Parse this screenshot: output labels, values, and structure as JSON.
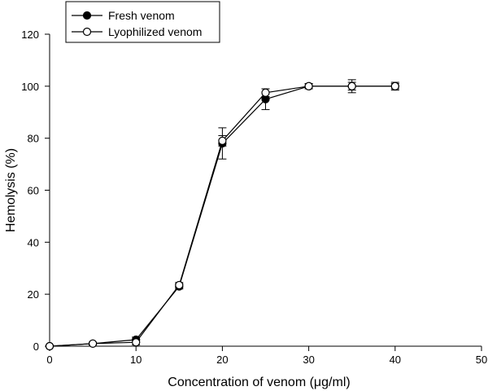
{
  "chart_data": {
    "type": "line",
    "title": "",
    "xlabel": "Concentration of venom (μg/ml)",
    "ylabel": "Hemolysis (%)",
    "xlim": [
      0,
      50
    ],
    "ylim": [
      0,
      120
    ],
    "xticks": [
      0,
      10,
      20,
      30,
      40,
      50
    ],
    "yticks": [
      0,
      20,
      40,
      60,
      80,
      100,
      120
    ],
    "grid": false,
    "legend_position": "top-left",
    "series": [
      {
        "name": "Fresh venom",
        "marker": "filled-circle",
        "color": "#000000",
        "x": [
          0,
          5,
          10,
          15,
          20,
          25,
          30,
          35,
          40
        ],
        "y": [
          0,
          1,
          2.5,
          23,
          78,
          95,
          100,
          100,
          100
        ],
        "error": [
          0,
          0.5,
          1,
          1,
          6,
          4,
          1,
          2.5,
          1.5
        ]
      },
      {
        "name": "Lyophilized venom",
        "marker": "open-circle",
        "color": "#000000",
        "x": [
          0,
          5,
          10,
          15,
          20,
          25,
          30,
          35,
          40
        ],
        "y": [
          0,
          1,
          1.5,
          23.5,
          79,
          97.5,
          100,
          100,
          100
        ],
        "error": [
          0,
          0.5,
          1,
          1,
          2,
          1.5,
          1,
          1.5,
          1
        ]
      }
    ]
  }
}
